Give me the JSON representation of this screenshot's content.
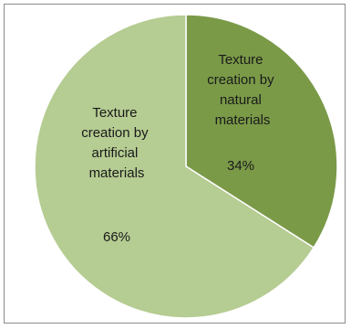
{
  "chart_data": {
    "type": "pie",
    "title": "",
    "slices": [
      {
        "label_lines": [
          "Texture",
          "creation by",
          "natural",
          "materials"
        ],
        "value_label": "34%",
        "value": 34,
        "color": "#7a9a48"
      },
      {
        "label_lines": [
          "Texture",
          "creation by",
          "artificial",
          "materials"
        ],
        "value_label": "66%",
        "value": 66,
        "color": "#b5cc92"
      }
    ],
    "legend": "none"
  }
}
